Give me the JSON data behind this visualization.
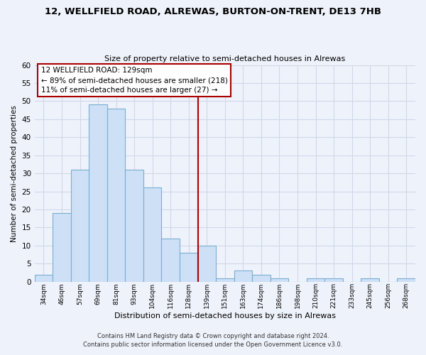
{
  "title": "12, WELLFIELD ROAD, ALREWAS, BURTON-ON-TRENT, DE13 7HB",
  "subtitle": "Size of property relative to semi-detached houses in Alrewas",
  "xlabel": "Distribution of semi-detached houses by size in Alrewas",
  "ylabel": "Number of semi-detached properties",
  "bin_labels": [
    "34sqm",
    "46sqm",
    "57sqm",
    "69sqm",
    "81sqm",
    "93sqm",
    "104sqm",
    "116sqm",
    "128sqm",
    "139sqm",
    "151sqm",
    "163sqm",
    "174sqm",
    "186sqm",
    "198sqm",
    "210sqm",
    "221sqm",
    "233sqm",
    "245sqm",
    "256sqm",
    "268sqm"
  ],
  "bar_heights": [
    2,
    19,
    31,
    49,
    48,
    31,
    26,
    12,
    8,
    10,
    1,
    3,
    2,
    1,
    0,
    1,
    1,
    0,
    1,
    0,
    1
  ],
  "bar_color": "#cde0f5",
  "bar_edge_color": "#7aadd4",
  "ylim": [
    0,
    60
  ],
  "yticks": [
    0,
    5,
    10,
    15,
    20,
    25,
    30,
    35,
    40,
    45,
    50,
    55,
    60
  ],
  "property_line_x": 9.0,
  "property_line_color": "#aa0000",
  "annotation_box_color": "#ffffff",
  "annotation_box_edge": "#aa0000",
  "annotation_title": "12 WELLFIELD ROAD: 129sqm",
  "annotation_line1": "← 89% of semi-detached houses are smaller (218)",
  "annotation_line2": "11% of semi-detached houses are larger (27) →",
  "footer1": "Contains HM Land Registry data © Crown copyright and database right 2024.",
  "footer2": "Contains public sector information licensed under the Open Government Licence v3.0.",
  "bg_color": "#eef2fa",
  "grid_color": "#d0d8e8"
}
